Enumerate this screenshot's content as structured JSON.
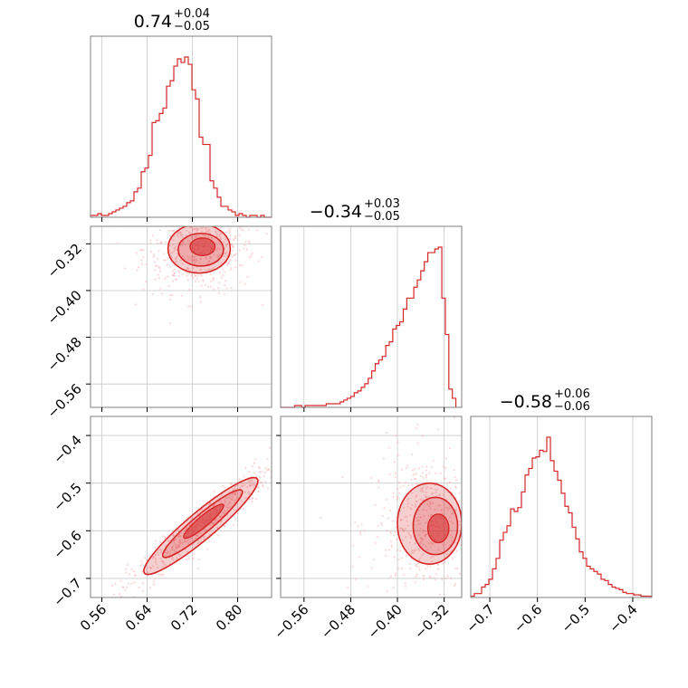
{
  "colors": {
    "accent": "#d62728",
    "frame": "#808080",
    "grid": "#c8c8c8",
    "points": "#f4a8aa"
  },
  "chart_data": {
    "type": "corner",
    "grid": true,
    "parameters": [
      {
        "title_main": "0.74",
        "title_plus": "+0.04",
        "title_minus": "−0.05",
        "range": [
          0.54,
          0.86
        ],
        "median": 0.74,
        "sigma": 0.045,
        "ticks": [
          0.56,
          0.64,
          0.72,
          0.8
        ],
        "tick_labels": [
          "0.56",
          "0.64",
          "0.72",
          "0.80"
        ]
      },
      {
        "title_main": "−0.34",
        "title_plus": "+0.03",
        "title_minus": "−0.05",
        "range": [
          -0.6,
          -0.29
        ],
        "median": -0.34,
        "sigma": 0.04,
        "ticks": [
          -0.56,
          -0.48,
          -0.4,
          -0.32
        ],
        "tick_labels": [
          "−0.56",
          "−0.48",
          "−0.40",
          "−0.32"
        ]
      },
      {
        "title_main": "−0.58",
        "title_plus": "+0.06",
        "title_minus": "−0.06",
        "range": [
          -0.74,
          -0.36
        ],
        "median": -0.58,
        "sigma": 0.06,
        "ticks": [
          -0.7,
          -0.6,
          -0.5,
          -0.4
        ],
        "tick_labels": [
          "−0.7",
          "−0.6",
          "−0.5",
          "−0.4"
        ]
      }
    ],
    "histograms": [
      {
        "param": 0,
        "bins": [
          0.54,
          0.5464,
          0.5528,
          0.5592,
          0.5656,
          0.572,
          0.5784,
          0.5848,
          0.5912,
          0.5976,
          0.604,
          0.6104,
          0.6168,
          0.6232,
          0.6296,
          0.636,
          0.6424,
          0.6488,
          0.6552,
          0.6616,
          0.668,
          0.6744,
          0.6808,
          0.6872,
          0.6936,
          0.7,
          0.7064,
          0.7128,
          0.7192,
          0.7256,
          0.732,
          0.7384,
          0.7448,
          0.7512,
          0.7576,
          0.764,
          0.7704,
          0.7768,
          0.7832,
          0.7896,
          0.796,
          0.8024,
          0.8088,
          0.8152,
          0.8216,
          0.828,
          0.8344,
          0.8408,
          0.8472,
          0.8536,
          0.86
        ],
        "counts": [
          1,
          1,
          2,
          1,
          1,
          2,
          3,
          4,
          5,
          6,
          8,
          9,
          14,
          16,
          25,
          27,
          34,
          52,
          53,
          57,
          60,
          72,
          75,
          83,
          87,
          85,
          88,
          84,
          70,
          65,
          44,
          40,
          40,
          20,
          16,
          11,
          6,
          6,
          4,
          3,
          1,
          2,
          1,
          0,
          1,
          1,
          0,
          1,
          0,
          0
        ]
      },
      {
        "param": 1,
        "bins": [
          -0.6,
          -0.594,
          -0.588,
          -0.582,
          -0.576,
          -0.57,
          -0.564,
          -0.558,
          -0.552,
          -0.546,
          -0.54,
          -0.534,
          -0.528,
          -0.522,
          -0.516,
          -0.51,
          -0.504,
          -0.498,
          -0.492,
          -0.486,
          -0.48,
          -0.474,
          -0.468,
          -0.462,
          -0.456,
          -0.45,
          -0.444,
          -0.438,
          -0.432,
          -0.426,
          -0.42,
          -0.414,
          -0.408,
          -0.402,
          -0.396,
          -0.39,
          -0.384,
          -0.378,
          -0.372,
          -0.366,
          -0.36,
          -0.354,
          -0.348,
          -0.342,
          -0.336,
          -0.33,
          -0.324,
          -0.318,
          -0.312,
          -0.306,
          -0.3
        ],
        "counts": [
          0,
          0,
          0,
          0,
          1,
          1,
          0,
          1,
          1,
          1,
          1,
          1,
          1,
          2,
          2,
          2,
          2,
          3,
          4,
          5,
          6,
          8,
          9,
          11,
          13,
          16,
          20,
          24,
          26,
          28,
          34,
          36,
          43,
          45,
          47,
          54,
          60,
          60,
          66,
          70,
          75,
          80,
          85,
          85,
          87,
          88,
          60,
          40,
          10,
          5
        ]
      },
      {
        "param": 2,
        "bins": [
          -0.74,
          -0.7324,
          -0.7248,
          -0.7172,
          -0.7096,
          -0.702,
          -0.6944,
          -0.6868,
          -0.6792,
          -0.6716,
          -0.664,
          -0.6564,
          -0.6488,
          -0.6412,
          -0.6336,
          -0.626,
          -0.6184,
          -0.6108,
          -0.6032,
          -0.5956,
          -0.588,
          -0.5804,
          -0.5728,
          -0.5652,
          -0.5576,
          -0.55,
          -0.5424,
          -0.5348,
          -0.5272,
          -0.5196,
          -0.512,
          -0.5044,
          -0.4968,
          -0.4892,
          -0.4816,
          -0.474,
          -0.4664,
          -0.4588,
          -0.4512,
          -0.4436,
          -0.436,
          -0.4284,
          -0.4208,
          -0.4132,
          -0.4056,
          -0.398,
          -0.3904,
          -0.3828,
          -0.3752,
          -0.3676,
          -0.36
        ],
        "counts": [
          1,
          3,
          3,
          8,
          10,
          14,
          22,
          30,
          44,
          50,
          55,
          68,
          66,
          69,
          81,
          94,
          99,
          107,
          108,
          113,
          112,
          123,
          105,
          97,
          90,
          80,
          70,
          65,
          54,
          45,
          35,
          30,
          24,
          22,
          20,
          18,
          14,
          13,
          10,
          8,
          7,
          6,
          4,
          3,
          3,
          2,
          2,
          1,
          1,
          1
        ]
      }
    ],
    "contours": [
      {
        "x_param": 0,
        "y_param": 1,
        "levels": [
          {
            "cx": 0.732,
            "cy": -0.328,
            "rx": 0.055,
            "ry": 0.042
          },
          {
            "cx": 0.735,
            "cy": -0.33,
            "rx": 0.04,
            "ry": 0.028
          },
          {
            "cx": 0.738,
            "cy": -0.325,
            "rx": 0.022,
            "ry": 0.015
          }
        ]
      },
      {
        "x_param": 0,
        "y_param": 2,
        "levels": [
          {
            "cx": 0.735,
            "cy": -0.59,
            "rx": 0.1,
            "ry": 0.018,
            "angle": 40
          },
          {
            "cx": 0.738,
            "cy": -0.585,
            "rx": 0.07,
            "ry": 0.012,
            "angle": 40
          },
          {
            "cx": 0.74,
            "cy": -0.58,
            "rx": 0.035,
            "ry": 0.007,
            "angle": 40
          }
        ]
      },
      {
        "x_param": 1,
        "y_param": 2,
        "levels": [
          {
            "cx": -0.345,
            "cy": -0.585,
            "rx": 0.055,
            "ry": 0.085
          },
          {
            "cx": -0.335,
            "cy": -0.59,
            "rx": 0.038,
            "ry": 0.06
          },
          {
            "cx": -0.33,
            "cy": -0.595,
            "rx": 0.018,
            "ry": 0.03
          }
        ]
      }
    ]
  }
}
